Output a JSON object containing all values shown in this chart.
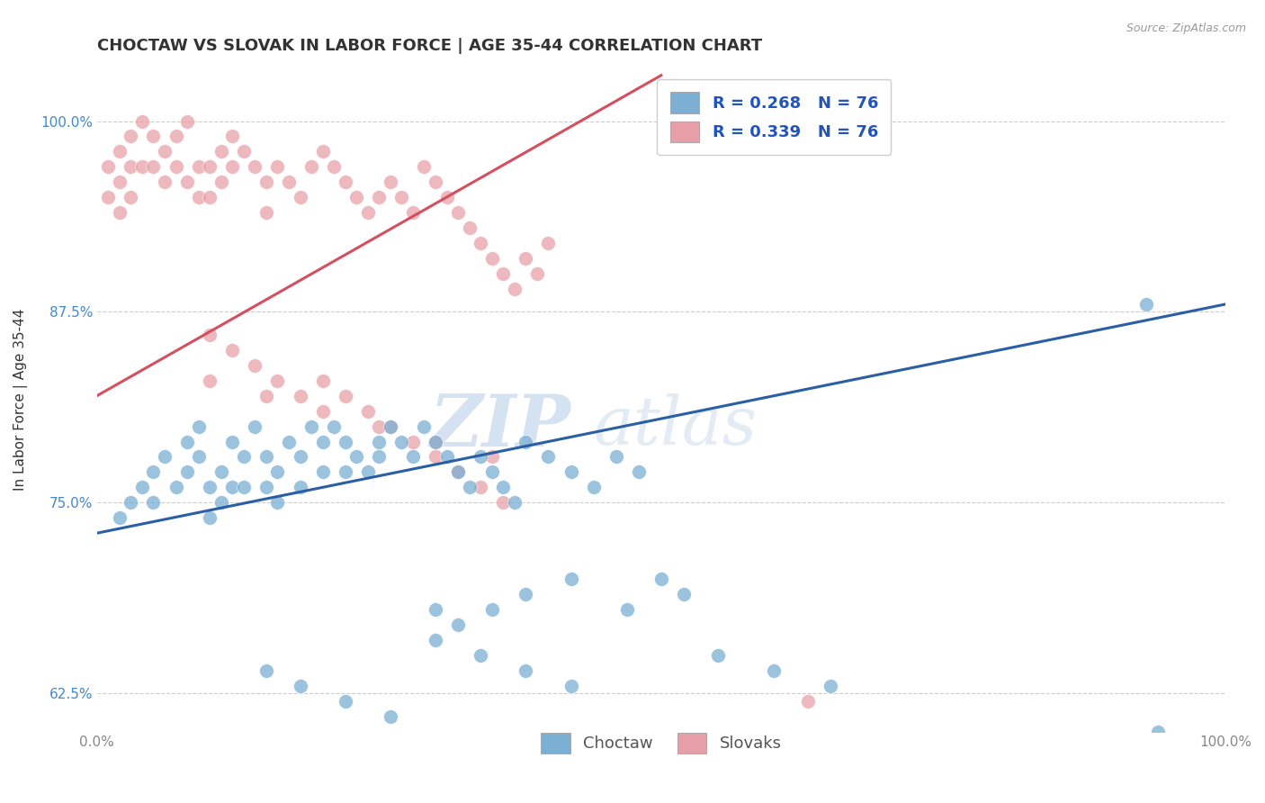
{
  "title": "CHOCTAW VS SLOVAK IN LABOR FORCE | AGE 35-44 CORRELATION CHART",
  "source_text": "Source: ZipAtlas.com",
  "ylabel": "In Labor Force | Age 35-44",
  "xlim": [
    0.0,
    100.0
  ],
  "ylim": [
    60.0,
    103.5
  ],
  "yticks": [
    62.5,
    75.0,
    87.5,
    100.0
  ],
  "ytick_labels": [
    "62.5%",
    "75.0%",
    "87.5%",
    "100.0%"
  ],
  "xticks": [
    0.0,
    100.0
  ],
  "xtick_labels": [
    "0.0%",
    "100.0%"
  ],
  "choctaw_color": "#7bafd4",
  "slovak_color": "#e8a0a8",
  "choctaw_line_color": "#2a5fa5",
  "slovak_line_color": "#d45060",
  "legend_R_choctaw": "R = 0.268",
  "legend_N_choctaw": "N = 76",
  "legend_R_slovak": "R = 0.339",
  "legend_N_slovak": "N = 76",
  "legend_label_choctaw": "Choctaw",
  "legend_label_slovak": "Slovaks",
  "watermark_zip": "ZIP",
  "watermark_atlas": "atlas",
  "background_color": "#ffffff",
  "grid_color": "#cccccc",
  "choctaw_x": [
    2,
    3,
    4,
    5,
    5,
    6,
    7,
    8,
    8,
    9,
    9,
    10,
    10,
    11,
    11,
    12,
    12,
    13,
    13,
    14,
    15,
    15,
    16,
    16,
    17,
    18,
    18,
    19,
    20,
    20,
    21,
    22,
    22,
    23,
    24,
    25,
    25,
    26,
    27,
    28,
    29,
    30,
    31,
    32,
    33,
    34,
    35,
    36,
    37,
    38,
    40,
    42,
    44,
    46,
    48,
    50,
    52,
    30,
    32,
    35,
    38,
    42,
    47,
    55,
    60,
    65,
    93,
    94,
    15,
    18,
    22,
    26,
    30,
    34,
    38,
    42
  ],
  "choctaw_y": [
    74,
    75,
    76,
    77,
    75,
    78,
    76,
    79,
    77,
    80,
    78,
    76,
    74,
    77,
    75,
    79,
    76,
    78,
    76,
    80,
    78,
    76,
    77,
    75,
    79,
    78,
    76,
    80,
    79,
    77,
    80,
    79,
    77,
    78,
    77,
    79,
    78,
    80,
    79,
    78,
    80,
    79,
    78,
    77,
    76,
    78,
    77,
    76,
    75,
    79,
    78,
    77,
    76,
    78,
    77,
    70,
    69,
    68,
    67,
    68,
    69,
    70,
    68,
    65,
    64,
    63,
    88,
    60,
    64,
    63,
    62,
    61,
    66,
    65,
    64,
    63
  ],
  "slovak_x": [
    1,
    1,
    2,
    2,
    2,
    3,
    3,
    3,
    4,
    4,
    5,
    5,
    6,
    6,
    7,
    7,
    8,
    8,
    9,
    9,
    10,
    10,
    11,
    11,
    12,
    12,
    13,
    14,
    15,
    15,
    16,
    17,
    18,
    19,
    20,
    21,
    22,
    23,
    24,
    25,
    26,
    27,
    28,
    29,
    30,
    31,
    32,
    33,
    34,
    35,
    36,
    37,
    38,
    39,
    40,
    10,
    12,
    14,
    16,
    18,
    20,
    22,
    24,
    26,
    28,
    30,
    32,
    34,
    36,
    10,
    15,
    20,
    25,
    30,
    35,
    63
  ],
  "slovak_y": [
    97,
    95,
    98,
    96,
    94,
    99,
    97,
    95,
    100,
    97,
    99,
    97,
    98,
    96,
    99,
    97,
    100,
    96,
    97,
    95,
    97,
    95,
    98,
    96,
    99,
    97,
    98,
    97,
    96,
    94,
    97,
    96,
    95,
    97,
    98,
    97,
    96,
    95,
    94,
    95,
    96,
    95,
    94,
    97,
    96,
    95,
    94,
    93,
    92,
    91,
    90,
    89,
    91,
    90,
    92,
    86,
    85,
    84,
    83,
    82,
    83,
    82,
    81,
    80,
    79,
    78,
    77,
    76,
    75,
    83,
    82,
    81,
    80,
    79,
    78,
    62
  ],
  "title_fontsize": 13,
  "axis_label_fontsize": 11,
  "tick_fontsize": 11,
  "legend_fontsize": 13
}
